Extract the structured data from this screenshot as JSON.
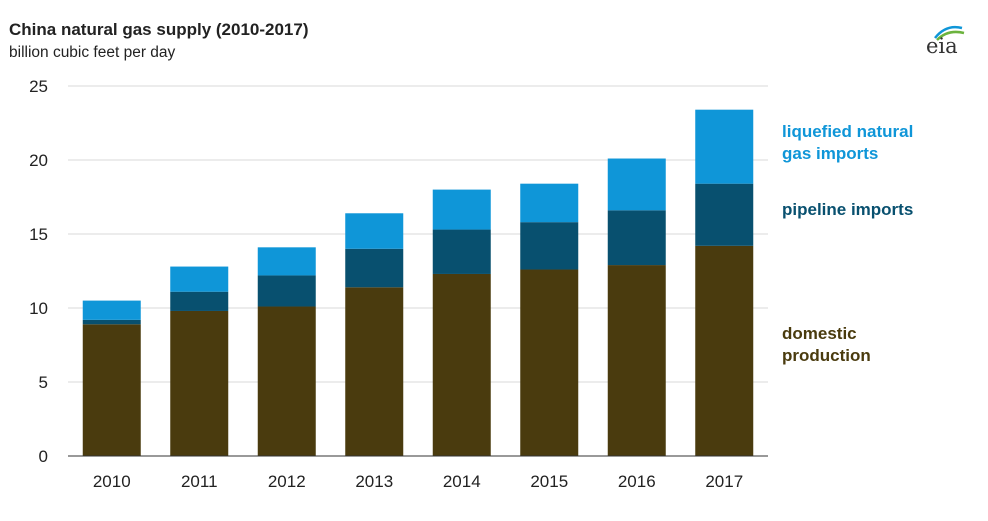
{
  "title": "China natural gas supply (2010-2017)",
  "subtitle": "billion cubic feet per day",
  "logo": "eia",
  "colors": {
    "domestic": "#4a3b0e",
    "pipeline": "#08506f",
    "lng": "#0f96d8",
    "grid": "#d9d9d9",
    "axis": "#333333"
  },
  "legend": [
    {
      "key": "lng",
      "label": "liquefied natural\ngas imports",
      "color": "#0f96d8"
    },
    {
      "key": "pipeline",
      "label": "pipeline imports",
      "color": "#08506f"
    },
    {
      "key": "domestic",
      "label": "domestic\nproduction",
      "color": "#4a3b0e"
    }
  ],
  "chart_data": {
    "type": "bar",
    "stacked": true,
    "categories": [
      "2010",
      "2011",
      "2012",
      "2013",
      "2014",
      "2015",
      "2016",
      "2017"
    ],
    "series": [
      {
        "name": "domestic production",
        "values": [
          8.9,
          9.8,
          10.1,
          11.4,
          12.3,
          12.6,
          12.9,
          14.2
        ]
      },
      {
        "name": "pipeline imports",
        "values": [
          0.3,
          1.3,
          2.1,
          2.6,
          3.0,
          3.2,
          3.7,
          4.2
        ]
      },
      {
        "name": "liquefied natural gas imports",
        "values": [
          1.3,
          1.7,
          1.9,
          2.4,
          2.7,
          2.6,
          3.5,
          5.0
        ]
      }
    ],
    "ylim": [
      0,
      25
    ],
    "yticks": [
      0,
      5,
      10,
      15,
      20,
      25
    ],
    "grid": true
  }
}
